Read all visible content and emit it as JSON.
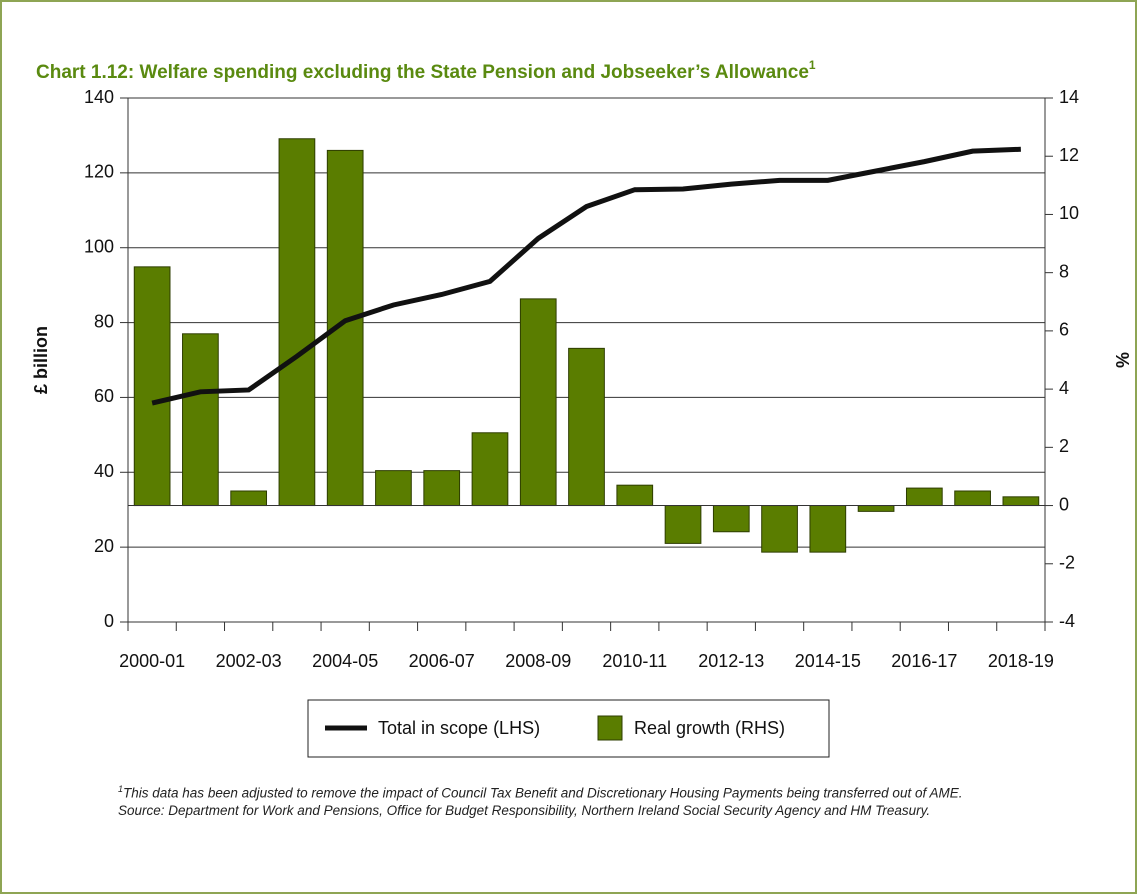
{
  "chart_data": {
    "type": "combo",
    "title": "Chart 1.12: Welfare spending excluding the State Pension and Jobseeker’s Allowance",
    "title_mark": "1",
    "ylabel": "£ billion",
    "y2label": "%",
    "categories": [
      "2000-01",
      null,
      "2002-03",
      null,
      "2004-05",
      null,
      "2006-07",
      null,
      "2008-09",
      null,
      "2010-11",
      null,
      "2012-13",
      null,
      "2014-15",
      null,
      "2016-17",
      null,
      "2018-19"
    ],
    "series": [
      {
        "name": "Total in scope (LHS)",
        "type": "line",
        "color": "#111111",
        "axis": "y",
        "values": [
          58.5,
          61.5,
          62,
          71,
          80.5,
          84.7,
          87.5,
          91,
          102.5,
          111,
          115.5,
          115.7,
          117,
          118,
          118,
          120.5,
          123,
          125.8,
          126.3
        ]
      },
      {
        "name": "Real growth (RHS)",
        "type": "bar",
        "color": "#5a7d00",
        "axis": "y2",
        "values": [
          8.2,
          5.9,
          0.5,
          12.6,
          12.2,
          1.2,
          1.2,
          2.5,
          7.1,
          5.4,
          0.7,
          -1.3,
          -0.9,
          -1.6,
          -1.6,
          -0.2,
          0.6,
          0.5,
          0.3
        ]
      }
    ],
    "ylim": [
      0,
      140
    ],
    "yticks": [
      0,
      20,
      40,
      60,
      80,
      100,
      120,
      140
    ],
    "y2lim": [
      -4,
      14
    ],
    "y2ticks": [
      -4,
      -2,
      0,
      2,
      4,
      6,
      8,
      10,
      12,
      14
    ],
    "grid": true,
    "notes": [
      "This data has been adjusted to remove the impact of Council Tax Benefit and Discretionary Housing Payments being transferred out of AME.",
      "Source: Department for Work and Pensions, Office for Budget Responsibility, Northern Ireland Social Security Agency and HM Treasury."
    ],
    "note_mark": "1"
  }
}
